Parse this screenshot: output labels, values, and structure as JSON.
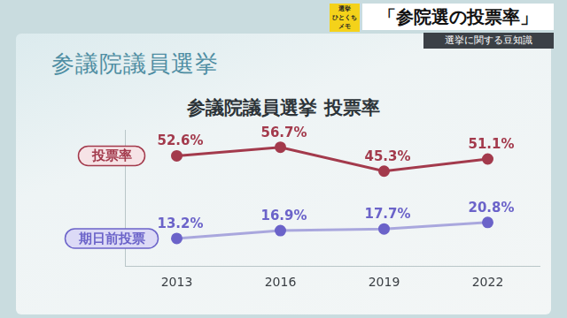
{
  "header": {
    "badge": [
      "選挙",
      "ひとくち",
      "メモ"
    ],
    "title": "「参院選の投票率」",
    "subtitle": "選挙に関する豆知識"
  },
  "heading": "参議院議員選挙",
  "chart_data": {
    "type": "line",
    "title": "参議院議員選挙 投票率",
    "categories": [
      "2013",
      "2016",
      "2019",
      "2022"
    ],
    "series": [
      {
        "name": "投票率",
        "color": "#a33a4c",
        "values": [
          52.6,
          56.7,
          45.3,
          51.1
        ],
        "value_labels": [
          "52.6%",
          "56.7%",
          "45.3%",
          "51.1%"
        ]
      },
      {
        "name": "期日前投票",
        "color": "#6b63c9",
        "values": [
          13.2,
          16.9,
          17.7,
          20.8
        ],
        "value_labels": [
          "13.2%",
          "16.9%",
          "17.7%",
          "20.8%"
        ]
      }
    ],
    "ylim": [
      0,
      65
    ],
    "grid": false,
    "data_labels": true,
    "tick_labels": "x",
    "marker": "circle"
  }
}
